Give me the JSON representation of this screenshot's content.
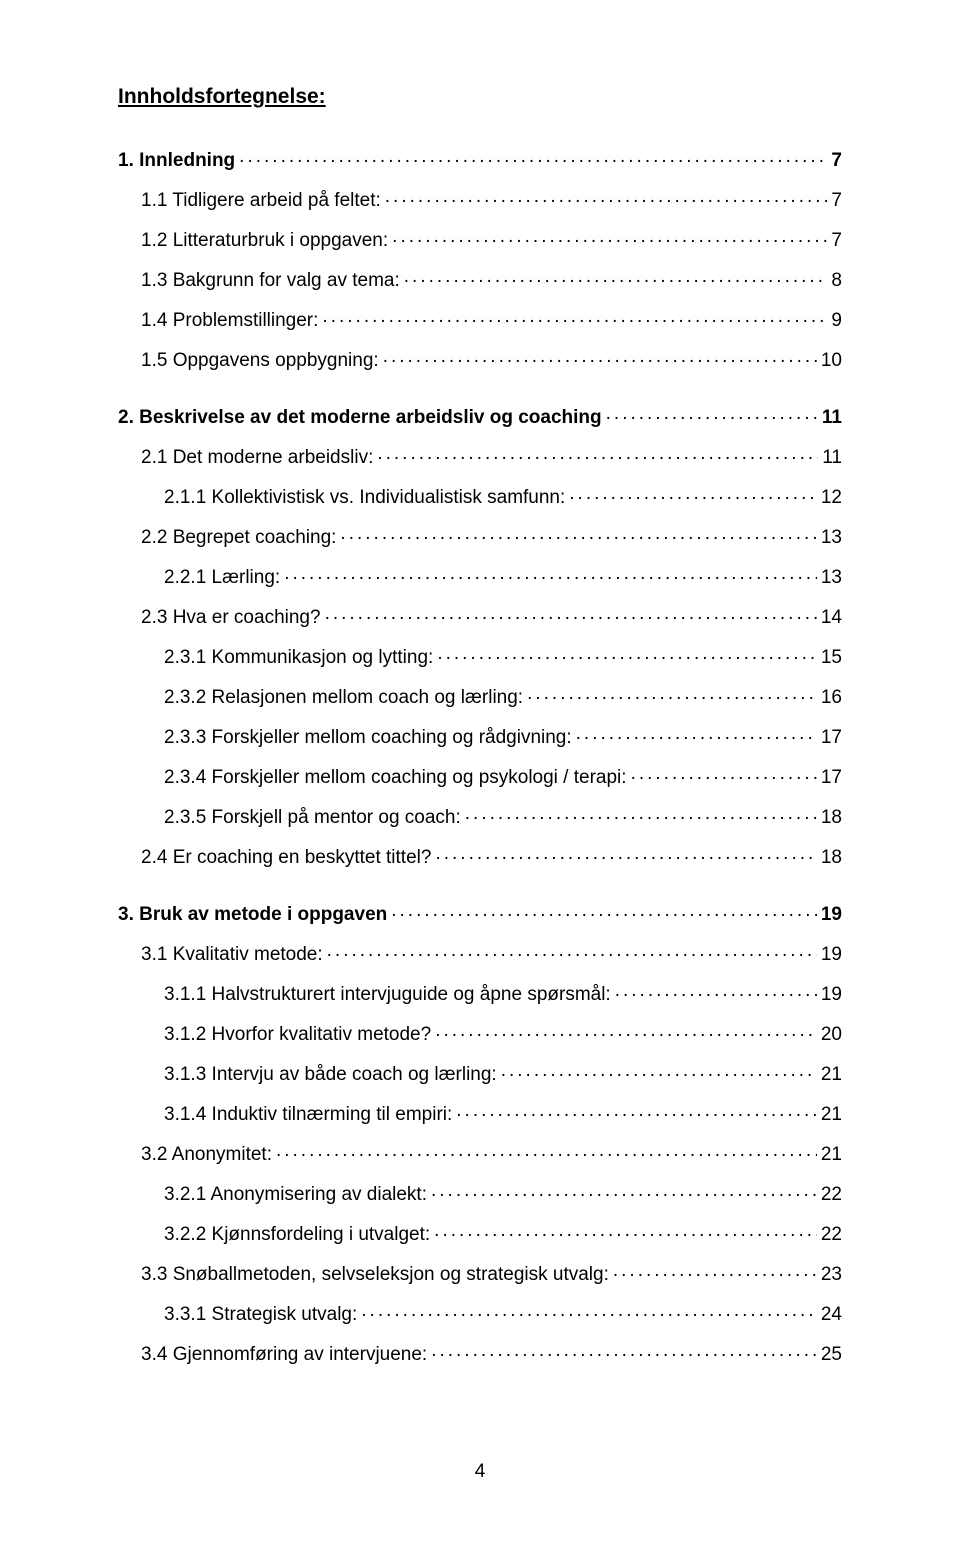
{
  "heading": "Innholdsfortegnelse:",
  "page_number": "4",
  "toc": [
    {
      "label": "1. Innledning",
      "page": "7",
      "bold": true,
      "indent": 0,
      "gap": false
    },
    {
      "label": "1.1 Tidligere arbeid på feltet:",
      "page": "7",
      "bold": false,
      "indent": 1,
      "gap": false
    },
    {
      "label": "1.2 Litteraturbruk i oppgaven:",
      "page": "7",
      "bold": false,
      "indent": 1,
      "gap": false
    },
    {
      "label": "1.3 Bakgrunn for valg av tema:",
      "page": "8",
      "bold": false,
      "indent": 1,
      "gap": false
    },
    {
      "label": "1.4 Problemstillinger:",
      "page": "9",
      "bold": false,
      "indent": 1,
      "gap": false
    },
    {
      "label": "1.5 Oppgavens oppbygning:",
      "page": "10",
      "bold": false,
      "indent": 1,
      "gap": false
    },
    {
      "label": "2. Beskrivelse av det moderne arbeidsliv og coaching",
      "page": "11",
      "bold": true,
      "indent": 0,
      "gap": true
    },
    {
      "label": "2.1 Det moderne arbeidsliv:",
      "page": "11",
      "bold": false,
      "indent": 1,
      "gap": false
    },
    {
      "label": "2.1.1 Kollektivistisk vs. Individualistisk samfunn:",
      "page": "12",
      "bold": false,
      "indent": 2,
      "gap": false
    },
    {
      "label": "2.2 Begrepet coaching:",
      "page": "13",
      "bold": false,
      "indent": 1,
      "gap": false
    },
    {
      "label": "2.2.1 Lærling:",
      "page": "13",
      "bold": false,
      "indent": 2,
      "gap": false
    },
    {
      "label": "2.3 Hva er coaching?",
      "page": "14",
      "bold": false,
      "indent": 1,
      "gap": false
    },
    {
      "label": "2.3.1 Kommunikasjon og lytting:",
      "page": "15",
      "bold": false,
      "indent": 2,
      "gap": false
    },
    {
      "label": "2.3.2 Relasjonen mellom coach og lærling:",
      "page": "16",
      "bold": false,
      "indent": 2,
      "gap": false
    },
    {
      "label": "2.3.3 Forskjeller mellom coaching og rådgivning:",
      "page": "17",
      "bold": false,
      "indent": 2,
      "gap": false
    },
    {
      "label": "2.3.4 Forskjeller mellom coaching og psykologi / terapi:",
      "page": "17",
      "bold": false,
      "indent": 2,
      "gap": false
    },
    {
      "label": "2.3.5 Forskjell på mentor og coach:",
      "page": "18",
      "bold": false,
      "indent": 2,
      "gap": false
    },
    {
      "label": "2.4 Er coaching en beskyttet tittel?",
      "page": "18",
      "bold": false,
      "indent": 1,
      "gap": false
    },
    {
      "label": "3. Bruk av metode i oppgaven",
      "page": "19",
      "bold": true,
      "indent": 0,
      "gap": true
    },
    {
      "label": "3.1 Kvalitativ metode:",
      "page": "19",
      "bold": false,
      "indent": 1,
      "gap": false
    },
    {
      "label": "3.1.1 Halvstrukturert intervjuguide og åpne spørsmål:",
      "page": "19",
      "bold": false,
      "indent": 2,
      "gap": false
    },
    {
      "label": "3.1.2 Hvorfor kvalitativ metode?",
      "page": "20",
      "bold": false,
      "indent": 2,
      "gap": false
    },
    {
      "label": "3.1.3 Intervju av både coach og lærling:",
      "page": "21",
      "bold": false,
      "indent": 2,
      "gap": false
    },
    {
      "label": "3.1.4 Induktiv tilnærming til empiri:",
      "page": "21",
      "bold": false,
      "indent": 2,
      "gap": false
    },
    {
      "label": "3.2 Anonymitet:",
      "page": "21",
      "bold": false,
      "indent": 1,
      "gap": false
    },
    {
      "label": "3.2.1 Anonymisering av dialekt:",
      "page": "22",
      "bold": false,
      "indent": 2,
      "gap": false
    },
    {
      "label": "3.2.2 Kjønnsfordeling i utvalget:",
      "page": "22",
      "bold": false,
      "indent": 2,
      "gap": false
    },
    {
      "label": "3.3 Snøballmetoden, selvseleksjon og strategisk utvalg:",
      "page": "23",
      "bold": false,
      "indent": 1,
      "gap": false
    },
    {
      "label": "3.3.1 Strategisk utvalg:",
      "page": "24",
      "bold": false,
      "indent": 2,
      "gap": false
    },
    {
      "label": "3.4 Gjennomføring av intervjuene:",
      "page": "25",
      "bold": false,
      "indent": 1,
      "gap": false
    }
  ]
}
